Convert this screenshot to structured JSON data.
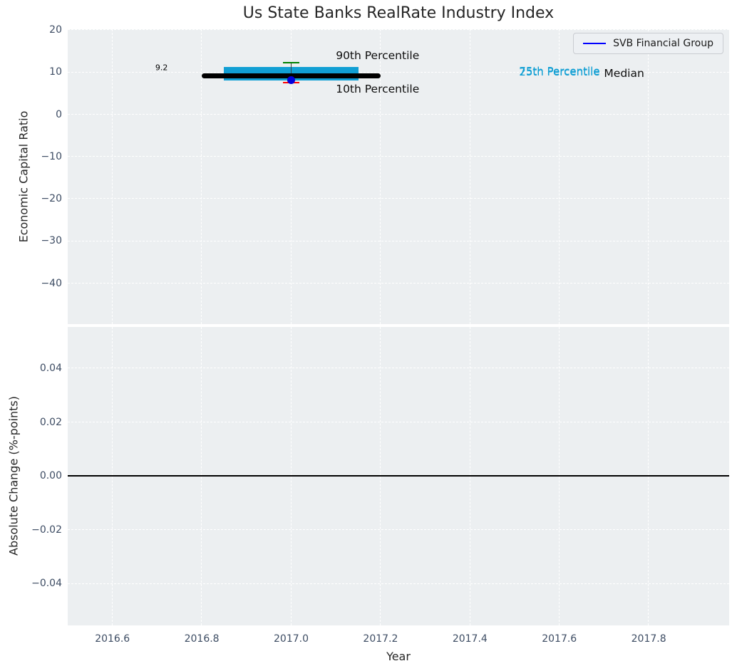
{
  "figure": {
    "title": "Us State Banks RealRate Industry Index",
    "legend": {
      "label": "SVB Financial Group",
      "line_color": "#0000ff",
      "position": "upper right"
    }
  },
  "colors": {
    "plot_background": "#eceff1",
    "gridline": "#ffffff",
    "tick_label": "#3d4c63",
    "axis_label": "#262626",
    "box_fill": "#119fd4",
    "median_line": "#000000",
    "p90_cap": "#008000",
    "p10_cap": "#ff0000",
    "errorbar_line": "#404040",
    "svb_marker": "#0000dd",
    "legend_line": "#0000ff",
    "zero_line": "#000000"
  },
  "chart_data": [
    {
      "type": "box",
      "subplot": "top",
      "title": "Us State Banks RealRate Industry Index",
      "ylabel": "Economic Capital Ratio",
      "xlim": [
        2016.5,
        2017.98
      ],
      "ylim": [
        -49.7,
        20.2
      ],
      "grid": true,
      "xticks": [
        2016.6,
        2016.8,
        2017.0,
        2017.2,
        2017.4,
        2017.6,
        2017.8
      ],
      "yticks": [
        20,
        10,
        0,
        -10,
        -20,
        -30,
        -40
      ],
      "ytick_labels": [
        "20",
        "10",
        "0",
        "−10",
        "−20",
        "−30",
        "−40"
      ],
      "legend": {
        "label": "SVB Financial Group",
        "position": "upper right"
      },
      "series": [
        {
          "name": "SVB Financial Group",
          "x": [
            2017.0
          ],
          "y": [
            8.2
          ],
          "marker": "circle"
        }
      ],
      "box": {
        "x_center": 2017.0,
        "box_x_range": [
          2016.85,
          2017.15
        ],
        "median_x_range": [
          2016.8,
          2017.2
        ],
        "p10": 7.5,
        "p25": 8.0,
        "median": 9.2,
        "p75": 11.2,
        "p90": 12.3,
        "cap_halfwidth": 0.018
      },
      "annotations": [
        {
          "text": "9.2",
          "x": 2016.71,
          "y": 11.1,
          "color": "#000000",
          "size": 11,
          "ha": "center"
        },
        {
          "text": "90th Percentile",
          "x": 2017.1,
          "y": 14.0,
          "color": "#0d0d0d",
          "size": 15.5,
          "ha": "left"
        },
        {
          "text": "10th Percentile",
          "x": 2017.1,
          "y": 6.0,
          "color": "#0d0d0d",
          "size": 15.5,
          "ha": "left"
        },
        {
          "text": "75th Percentile",
          "x": 2017.51,
          "y": 10.3,
          "color": "#119fd4",
          "size": 15,
          "ha": "left"
        },
        {
          "text": "25th Percentile",
          "x": 2017.51,
          "y": 10.0,
          "color": "#119fd4",
          "size": 15,
          "ha": "left"
        },
        {
          "text": "Median",
          "x": 2017.7,
          "y": 9.7,
          "color": "#0d0d0d",
          "size": 15.5,
          "ha": "left"
        }
      ]
    },
    {
      "type": "line",
      "subplot": "bottom",
      "ylabel": "Absolute Change (%-points)",
      "xlabel": "Year",
      "xlim": [
        2016.5,
        2017.98
      ],
      "ylim": [
        -0.0555,
        0.0554
      ],
      "grid": true,
      "xticks": [
        2016.6,
        2016.8,
        2017.0,
        2017.2,
        2017.4,
        2017.6,
        2017.8
      ],
      "xtick_labels": [
        "2016.6",
        "2016.8",
        "2017.0",
        "2017.2",
        "2017.4",
        "2017.6",
        "2017.8"
      ],
      "yticks": [
        0.04,
        0.02,
        0.0,
        -0.02,
        -0.04
      ],
      "ytick_labels": [
        "0.04",
        "0.02",
        "0.00",
        "−0.02",
        "−0.04"
      ],
      "zero_line": {
        "y": 0.0,
        "color": "#000000"
      }
    }
  ]
}
